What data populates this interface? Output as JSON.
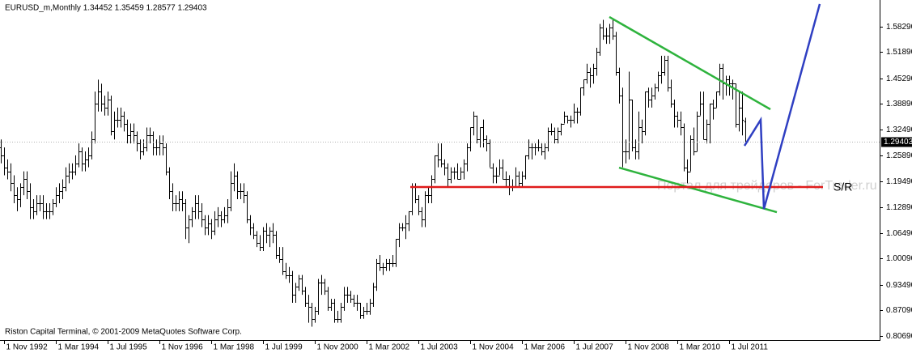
{
  "chart_data": {
    "type": "ohlc",
    "title": "EURUSD_m,Monthly  1.34452 1.35459 1.28577 1.29403",
    "footer": "Riston Capital Terminal, © 2001-2009 MetaQuotes Software Corp.",
    "watermark": "Портал для трейдеров - ForTrader.ru",
    "sr_label": "S/R",
    "color": "#000000",
    "ylim": [
      0.7966,
      1.6499
    ],
    "yticks": [
      {
        "value": 1.5829,
        "label": "1.58290"
      },
      {
        "value": 1.5189,
        "label": "1.51890"
      },
      {
        "value": 1.4529,
        "label": "1.45290"
      },
      {
        "value": 1.3889,
        "label": "1.38890"
      },
      {
        "value": 1.3249,
        "label": "1.32490"
      },
      {
        "value": 1.2589,
        "label": "1.25890"
      },
      {
        "value": 1.1949,
        "label": "1.19490"
      },
      {
        "value": 1.1289,
        "label": "1.12890"
      },
      {
        "value": 1.0649,
        "label": "1.06490"
      },
      {
        "value": 1.0009,
        "label": "1.00090"
      },
      {
        "value": 0.9349,
        "label": "0.93490"
      },
      {
        "value": 0.8709,
        "label": "0.87090"
      },
      {
        "value": 0.8069,
        "label": "0.80690"
      }
    ],
    "xlim": [
      -0.25,
      271.5
    ],
    "xticks": [
      {
        "value": 1,
        "label": "1 Nov 1992"
      },
      {
        "value": 17,
        "label": "1 Mar 1994"
      },
      {
        "value": 33,
        "label": "1 Jul 1995"
      },
      {
        "value": 49,
        "label": "1 Nov 1996"
      },
      {
        "value": 65,
        "label": "1 Mar 1998"
      },
      {
        "value": 81,
        "label": "1 Jul 1999"
      },
      {
        "value": 97,
        "label": "1 Nov 2000"
      },
      {
        "value": 113,
        "label": "1 Mar 2002"
      },
      {
        "value": 129,
        "label": "1 Jul 2003"
      },
      {
        "value": 145,
        "label": "1 Nov 2004"
      },
      {
        "value": 161,
        "label": "1 Mar 2006"
      },
      {
        "value": 177,
        "label": "1 Jul 2007"
      },
      {
        "value": 193,
        "label": "1 Nov 2008"
      },
      {
        "value": 209,
        "label": "1 Mar 2010"
      },
      {
        "value": 225,
        "label": "1 Jul 2011"
      }
    ],
    "open": [
      1.28,
      1.26,
      1.23,
      1.22,
      1.19,
      1.16,
      1.15,
      1.18,
      1.2,
      1.17,
      1.13,
      1.12,
      1.14,
      1.14,
      1.12,
      1.12,
      1.12,
      1.14,
      1.16,
      1.17,
      1.18,
      1.21,
      1.22,
      1.22,
      1.24,
      1.27,
      1.24,
      1.25,
      1.26,
      1.3,
      1.39,
      1.42,
      1.39,
      1.38,
      1.4,
      1.32,
      1.35,
      1.35,
      1.36,
      1.34,
      1.31,
      1.32,
      1.31,
      1.29,
      1.27,
      1.28,
      1.31,
      1.31,
      1.28,
      1.28,
      1.29,
      1.28,
      1.22,
      1.17,
      1.14,
      1.14,
      1.15,
      1.14,
      1.08,
      1.1,
      1.12,
      1.14,
      1.12,
      1.1,
      1.08,
      1.09,
      1.07,
      1.1,
      1.11,
      1.1,
      1.11,
      1.13,
      1.19,
      1.21,
      1.17,
      1.17,
      1.16,
      1.1,
      1.08,
      1.06,
      1.04,
      1.03,
      1.07,
      1.06,
      1.07,
      1.06,
      1.01,
      1.0,
      0.97,
      0.96,
      0.96,
      0.91,
      0.93,
      0.95,
      0.92,
      0.89,
      0.88,
      0.85,
      0.87,
      0.94,
      0.94,
      0.92,
      0.88,
      0.89,
      0.85,
      0.85,
      0.88,
      0.91,
      0.91,
      0.9,
      0.89,
      0.89,
      0.86,
      0.87,
      0.87,
      0.89,
      0.93,
      0.99,
      0.98,
      0.98,
      0.99,
      0.99,
      0.99,
      1.05,
      1.08,
      1.08,
      1.09,
      1.12,
      1.18,
      1.15,
      1.12,
      1.1,
      1.16,
      1.16,
      1.2,
      1.26,
      1.25,
      1.24,
      1.23,
      1.2,
      1.22,
      1.22,
      1.2,
      1.22,
      1.24,
      1.28,
      1.33,
      1.36,
      1.3,
      1.33,
      1.3,
      1.29,
      1.23,
      1.21,
      1.21,
      1.23,
      1.2,
      1.2,
      1.18,
      1.18,
      1.21,
      1.19,
      1.21,
      1.26,
      1.28,
      1.28,
      1.28,
      1.28,
      1.27,
      1.28,
      1.32,
      1.32,
      1.3,
      1.32,
      1.34,
      1.36,
      1.35,
      1.35,
      1.37,
      1.37,
      1.43,
      1.45,
      1.47,
      1.46,
      1.48,
      1.52,
      1.58,
      1.56,
      1.56,
      1.58,
      1.56,
      1.47,
      1.41,
      1.27,
      1.27,
      1.4,
      1.28,
      1.27,
      1.33,
      1.32,
      1.42,
      1.4,
      1.41,
      1.43,
      1.46,
      1.47,
      1.5,
      1.43,
      1.39,
      1.36,
      1.35,
      1.33,
      1.23,
      1.22,
      1.3,
      1.27,
      1.36,
      1.39,
      1.3,
      1.34,
      1.39,
      1.38,
      1.42,
      1.48,
      1.44,
      1.45,
      1.44,
      1.44,
      1.34,
      1.38,
      1.34452
    ],
    "high": [
      1.3,
      1.28,
      1.25,
      1.24,
      1.21,
      1.18,
      1.19,
      1.22,
      1.22,
      1.19,
      1.15,
      1.16,
      1.16,
      1.16,
      1.14,
      1.14,
      1.15,
      1.18,
      1.19,
      1.2,
      1.23,
      1.24,
      1.24,
      1.26,
      1.29,
      1.28,
      1.27,
      1.28,
      1.32,
      1.42,
      1.45,
      1.44,
      1.41,
      1.42,
      1.41,
      1.37,
      1.38,
      1.38,
      1.37,
      1.35,
      1.34,
      1.34,
      1.32,
      1.3,
      1.3,
      1.33,
      1.33,
      1.32,
      1.3,
      1.31,
      1.31,
      1.29,
      1.23,
      1.19,
      1.16,
      1.17,
      1.17,
      1.15,
      1.11,
      1.13,
      1.16,
      1.16,
      1.14,
      1.11,
      1.11,
      1.1,
      1.12,
      1.13,
      1.12,
      1.13,
      1.15,
      1.22,
      1.24,
      1.22,
      1.19,
      1.19,
      1.17,
      1.11,
      1.09,
      1.07,
      1.06,
      1.08,
      1.09,
      1.08,
      1.09,
      1.07,
      1.03,
      1.03,
      0.99,
      0.98,
      0.97,
      0.94,
      0.96,
      0.96,
      0.93,
      0.91,
      0.89,
      0.88,
      0.95,
      0.96,
      0.95,
      0.93,
      0.9,
      0.9,
      0.87,
      0.89,
      0.93,
      0.93,
      0.92,
      0.91,
      0.91,
      0.89,
      0.88,
      0.89,
      0.9,
      0.94,
      1.0,
      1.01,
      0.99,
      1.0,
      1.0,
      1.01,
      1.05,
      1.09,
      1.09,
      1.11,
      1.12,
      1.19,
      1.19,
      1.16,
      1.13,
      1.17,
      1.18,
      1.21,
      1.26,
      1.29,
      1.29,
      1.25,
      1.24,
      1.23,
      1.23,
      1.24,
      1.23,
      1.25,
      1.29,
      1.33,
      1.37,
      1.36,
      1.33,
      1.35,
      1.31,
      1.3,
      1.24,
      1.23,
      1.25,
      1.25,
      1.22,
      1.21,
      1.2,
      1.23,
      1.22,
      1.22,
      1.26,
      1.3,
      1.29,
      1.29,
      1.3,
      1.29,
      1.29,
      1.33,
      1.34,
      1.33,
      1.33,
      1.34,
      1.37,
      1.36,
      1.36,
      1.39,
      1.38,
      1.43,
      1.45,
      1.49,
      1.48,
      1.49,
      1.53,
      1.59,
      1.6,
      1.58,
      1.59,
      1.6,
      1.57,
      1.48,
      1.43,
      1.3,
      1.47,
      1.4,
      1.3,
      1.37,
      1.35,
      1.42,
      1.43,
      1.43,
      1.44,
      1.47,
      1.51,
      1.51,
      1.51,
      1.45,
      1.4,
      1.37,
      1.37,
      1.34,
      1.25,
      1.31,
      1.33,
      1.37,
      1.42,
      1.42,
      1.35,
      1.39,
      1.4,
      1.42,
      1.49,
      1.49,
      1.46,
      1.46,
      1.45,
      1.44,
      1.42,
      1.42,
      1.35459
    ],
    "low": [
      1.24,
      1.21,
      1.2,
      1.17,
      1.14,
      1.12,
      1.13,
      1.16,
      1.15,
      1.1,
      1.1,
      1.11,
      1.12,
      1.1,
      1.1,
      1.1,
      1.11,
      1.13,
      1.14,
      1.15,
      1.17,
      1.19,
      1.2,
      1.21,
      1.23,
      1.22,
      1.22,
      1.23,
      1.25,
      1.29,
      1.37,
      1.37,
      1.36,
      1.36,
      1.31,
      1.3,
      1.33,
      1.33,
      1.32,
      1.29,
      1.29,
      1.29,
      1.27,
      1.25,
      1.26,
      1.27,
      1.29,
      1.26,
      1.26,
      1.26,
      1.26,
      1.21,
      1.15,
      1.12,
      1.12,
      1.12,
      1.12,
      1.05,
      1.04,
      1.08,
      1.1,
      1.1,
      1.08,
      1.06,
      1.06,
      1.05,
      1.06,
      1.08,
      1.08,
      1.09,
      1.09,
      1.12,
      1.17,
      1.15,
      1.15,
      1.14,
      1.09,
      1.06,
      1.05,
      1.03,
      1.02,
      1.02,
      1.04,
      1.03,
      1.04,
      1.0,
      0.99,
      0.96,
      0.95,
      0.94,
      0.89,
      0.89,
      0.92,
      0.91,
      0.88,
      0.84,
      0.83,
      0.84,
      0.86,
      0.91,
      0.91,
      0.87,
      0.87,
      0.84,
      0.84,
      0.84,
      0.87,
      0.89,
      0.89,
      0.88,
      0.87,
      0.85,
      0.85,
      0.86,
      0.86,
      0.88,
      0.92,
      0.97,
      0.96,
      0.97,
      0.97,
      0.98,
      0.98,
      1.03,
      1.07,
      1.05,
      1.07,
      1.11,
      1.14,
      1.11,
      1.08,
      1.08,
      1.14,
      1.14,
      1.19,
      1.23,
      1.23,
      1.21,
      1.18,
      1.19,
      1.2,
      1.2,
      1.2,
      1.2,
      1.22,
      1.27,
      1.31,
      1.29,
      1.28,
      1.28,
      1.27,
      1.23,
      1.19,
      1.19,
      1.21,
      1.2,
      1.18,
      1.16,
      1.17,
      1.18,
      1.18,
      1.18,
      1.2,
      1.25,
      1.25,
      1.26,
      1.27,
      1.26,
      1.25,
      1.27,
      1.31,
      1.29,
      1.29,
      1.31,
      1.34,
      1.34,
      1.33,
      1.34,
      1.34,
      1.36,
      1.41,
      1.44,
      1.43,
      1.44,
      1.46,
      1.51,
      1.55,
      1.54,
      1.54,
      1.55,
      1.46,
      1.39,
      1.23,
      1.24,
      1.25,
      1.27,
      1.25,
      1.25,
      1.29,
      1.31,
      1.38,
      1.38,
      1.4,
      1.42,
      1.44,
      1.46,
      1.42,
      1.38,
      1.33,
      1.33,
      1.31,
      1.22,
      1.19,
      1.22,
      1.26,
      1.27,
      1.36,
      1.3,
      1.29,
      1.29,
      1.35,
      1.38,
      1.41,
      1.4,
      1.41,
      1.41,
      1.4,
      1.33,
      1.32,
      1.31,
      1.28577
    ],
    "close": [
      1.26,
      1.23,
      1.22,
      1.19,
      1.16,
      1.15,
      1.18,
      1.2,
      1.17,
      1.13,
      1.12,
      1.14,
      1.14,
      1.12,
      1.12,
      1.12,
      1.14,
      1.16,
      1.17,
      1.18,
      1.21,
      1.22,
      1.22,
      1.24,
      1.27,
      1.24,
      1.25,
      1.26,
      1.3,
      1.39,
      1.42,
      1.39,
      1.38,
      1.4,
      1.32,
      1.35,
      1.35,
      1.36,
      1.34,
      1.31,
      1.32,
      1.31,
      1.29,
      1.27,
      1.28,
      1.31,
      1.31,
      1.28,
      1.28,
      1.29,
      1.28,
      1.22,
      1.17,
      1.14,
      1.14,
      1.15,
      1.14,
      1.08,
      1.1,
      1.12,
      1.14,
      1.12,
      1.1,
      1.08,
      1.09,
      1.07,
      1.1,
      1.11,
      1.1,
      1.11,
      1.13,
      1.19,
      1.21,
      1.17,
      1.17,
      1.16,
      1.1,
      1.08,
      1.06,
      1.04,
      1.03,
      1.07,
      1.06,
      1.07,
      1.06,
      1.01,
      1.0,
      0.97,
      0.96,
      0.96,
      0.91,
      0.93,
      0.95,
      0.92,
      0.89,
      0.88,
      0.85,
      0.87,
      0.94,
      0.94,
      0.92,
      0.88,
      0.89,
      0.85,
      0.85,
      0.88,
      0.91,
      0.91,
      0.9,
      0.89,
      0.89,
      0.86,
      0.87,
      0.87,
      0.89,
      0.93,
      0.99,
      0.98,
      0.98,
      0.99,
      0.99,
      0.99,
      1.05,
      1.08,
      1.08,
      1.09,
      1.12,
      1.18,
      1.15,
      1.12,
      1.1,
      1.16,
      1.16,
      1.2,
      1.26,
      1.25,
      1.24,
      1.23,
      1.2,
      1.22,
      1.22,
      1.2,
      1.22,
      1.24,
      1.28,
      1.33,
      1.36,
      1.3,
      1.33,
      1.3,
      1.29,
      1.23,
      1.21,
      1.21,
      1.23,
      1.2,
      1.2,
      1.18,
      1.18,
      1.21,
      1.19,
      1.21,
      1.26,
      1.28,
      1.28,
      1.28,
      1.28,
      1.27,
      1.28,
      1.32,
      1.32,
      1.3,
      1.32,
      1.34,
      1.36,
      1.35,
      1.35,
      1.37,
      1.37,
      1.43,
      1.45,
      1.47,
      1.46,
      1.48,
      1.52,
      1.58,
      1.56,
      1.56,
      1.58,
      1.56,
      1.47,
      1.41,
      1.27,
      1.27,
      1.4,
      1.28,
      1.27,
      1.33,
      1.32,
      1.42,
      1.4,
      1.41,
      1.43,
      1.46,
      1.47,
      1.5,
      1.43,
      1.39,
      1.36,
      1.35,
      1.33,
      1.23,
      1.22,
      1.3,
      1.27,
      1.36,
      1.39,
      1.3,
      1.34,
      1.39,
      1.38,
      1.42,
      1.48,
      1.44,
      1.45,
      1.44,
      1.44,
      1.34,
      1.38,
      1.35,
      1.29403
    ],
    "drawings": [
      {
        "color": "#2eb33d",
        "x": [
          188,
          237.75
        ],
        "y": [
          1.6073,
          1.3756
        ]
      },
      {
        "color": "#2eb33d",
        "x": [
          191,
          239.75
        ],
        "y": [
          1.2292,
          1.1175
        ]
      },
      {
        "color": "#e01b1b",
        "x": [
          126.5,
          254
        ],
        "y": [
          1.1805,
          1.1805
        ]
      },
      {
        "color": "#2f3fc2",
        "x": [
          229.75,
          234.75,
          235.75,
          253
        ],
        "y": [
          1.2841,
          1.3491,
          1.1256,
          1.6398
        ]
      }
    ]
  }
}
